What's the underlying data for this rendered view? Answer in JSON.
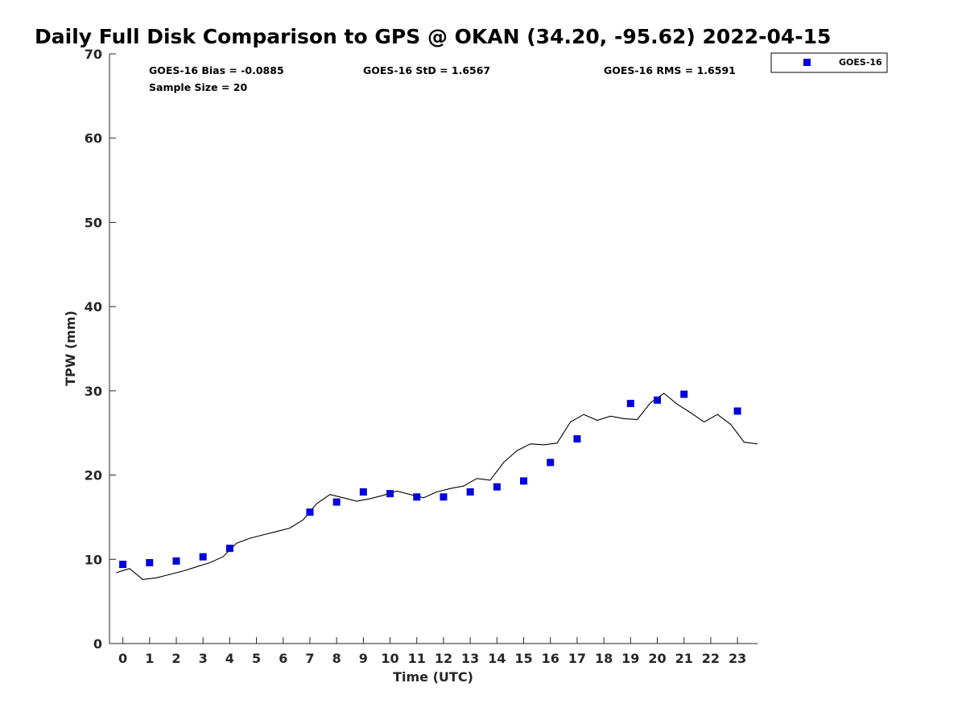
{
  "chart_data": {
    "type": "scatter",
    "title": "Daily Full Disk Comparison to GPS @ OKAN (34.20, -95.62) 2022-04-15",
    "xlabel": "Time (UTC)",
    "ylabel": "TPW (mm)",
    "xlim": [
      -0.5,
      23.75
    ],
    "ylim": [
      0,
      70
    ],
    "xticks": [
      0,
      1,
      2,
      3,
      4,
      5,
      6,
      7,
      8,
      9,
      10,
      11,
      12,
      13,
      14,
      15,
      16,
      17,
      18,
      19,
      20,
      21,
      22,
      23
    ],
    "yticks": [
      0,
      10,
      20,
      30,
      40,
      50,
      60,
      70
    ],
    "grid": false,
    "legend_position": "top-right",
    "stats": {
      "bias": "GOES-16 Bias = -0.0885",
      "std": "GOES-16 StD = 1.6567",
      "rms": "GOES-16 RMS = 1.6591",
      "sample": "Sample Size = 20"
    },
    "series": [
      {
        "name": "GOES-16",
        "kind": "markers",
        "color": "#0000dd",
        "x": [
          0,
          1,
          2,
          3,
          4,
          7,
          8,
          9,
          10,
          11,
          12,
          13,
          14,
          15,
          16,
          17,
          19,
          20,
          21,
          23
        ],
        "y": [
          9.4,
          9.6,
          9.8,
          10.3,
          11.3,
          15.6,
          16.8,
          18.0,
          17.8,
          17.4,
          17.4,
          18.0,
          18.6,
          19.3,
          21.5,
          24.3,
          28.5,
          28.9,
          29.6,
          27.6
        ]
      },
      {
        "kind": "line",
        "color": "#000000",
        "x": [
          -0.25,
          0.25,
          0.75,
          1.25,
          1.75,
          2.25,
          2.75,
          3.25,
          3.75,
          4.25,
          4.75,
          5.25,
          5.75,
          6.25,
          6.75,
          7.25,
          7.75,
          8.25,
          8.75,
          9.25,
          9.75,
          10.25,
          10.75,
          11.25,
          11.75,
          12.25,
          12.75,
          13.25,
          13.75,
          14.25,
          14.75,
          15.25,
          15.75,
          16.25,
          16.75,
          17.25,
          17.75,
          18.25,
          18.75,
          19.25,
          19.75,
          20.25,
          20.75,
          21.25,
          21.75,
          22.25,
          22.75,
          23.25,
          23.75
        ],
        "y": [
          8.4,
          8.9,
          7.6,
          7.8,
          8.2,
          8.6,
          9.1,
          9.6,
          10.3,
          11.9,
          12.5,
          12.9,
          13.3,
          13.7,
          14.7,
          16.6,
          17.7,
          17.3,
          16.9,
          17.2,
          17.6,
          18.1,
          17.7,
          17.3,
          18.0,
          18.4,
          18.7,
          19.6,
          19.4,
          21.5,
          22.9,
          23.7,
          23.6,
          23.8,
          26.3,
          27.2,
          26.5,
          27.0,
          26.7,
          26.6,
          28.6,
          29.7,
          28.4,
          27.4,
          26.3,
          27.2,
          26.0,
          23.9,
          23.7
        ]
      }
    ]
  }
}
